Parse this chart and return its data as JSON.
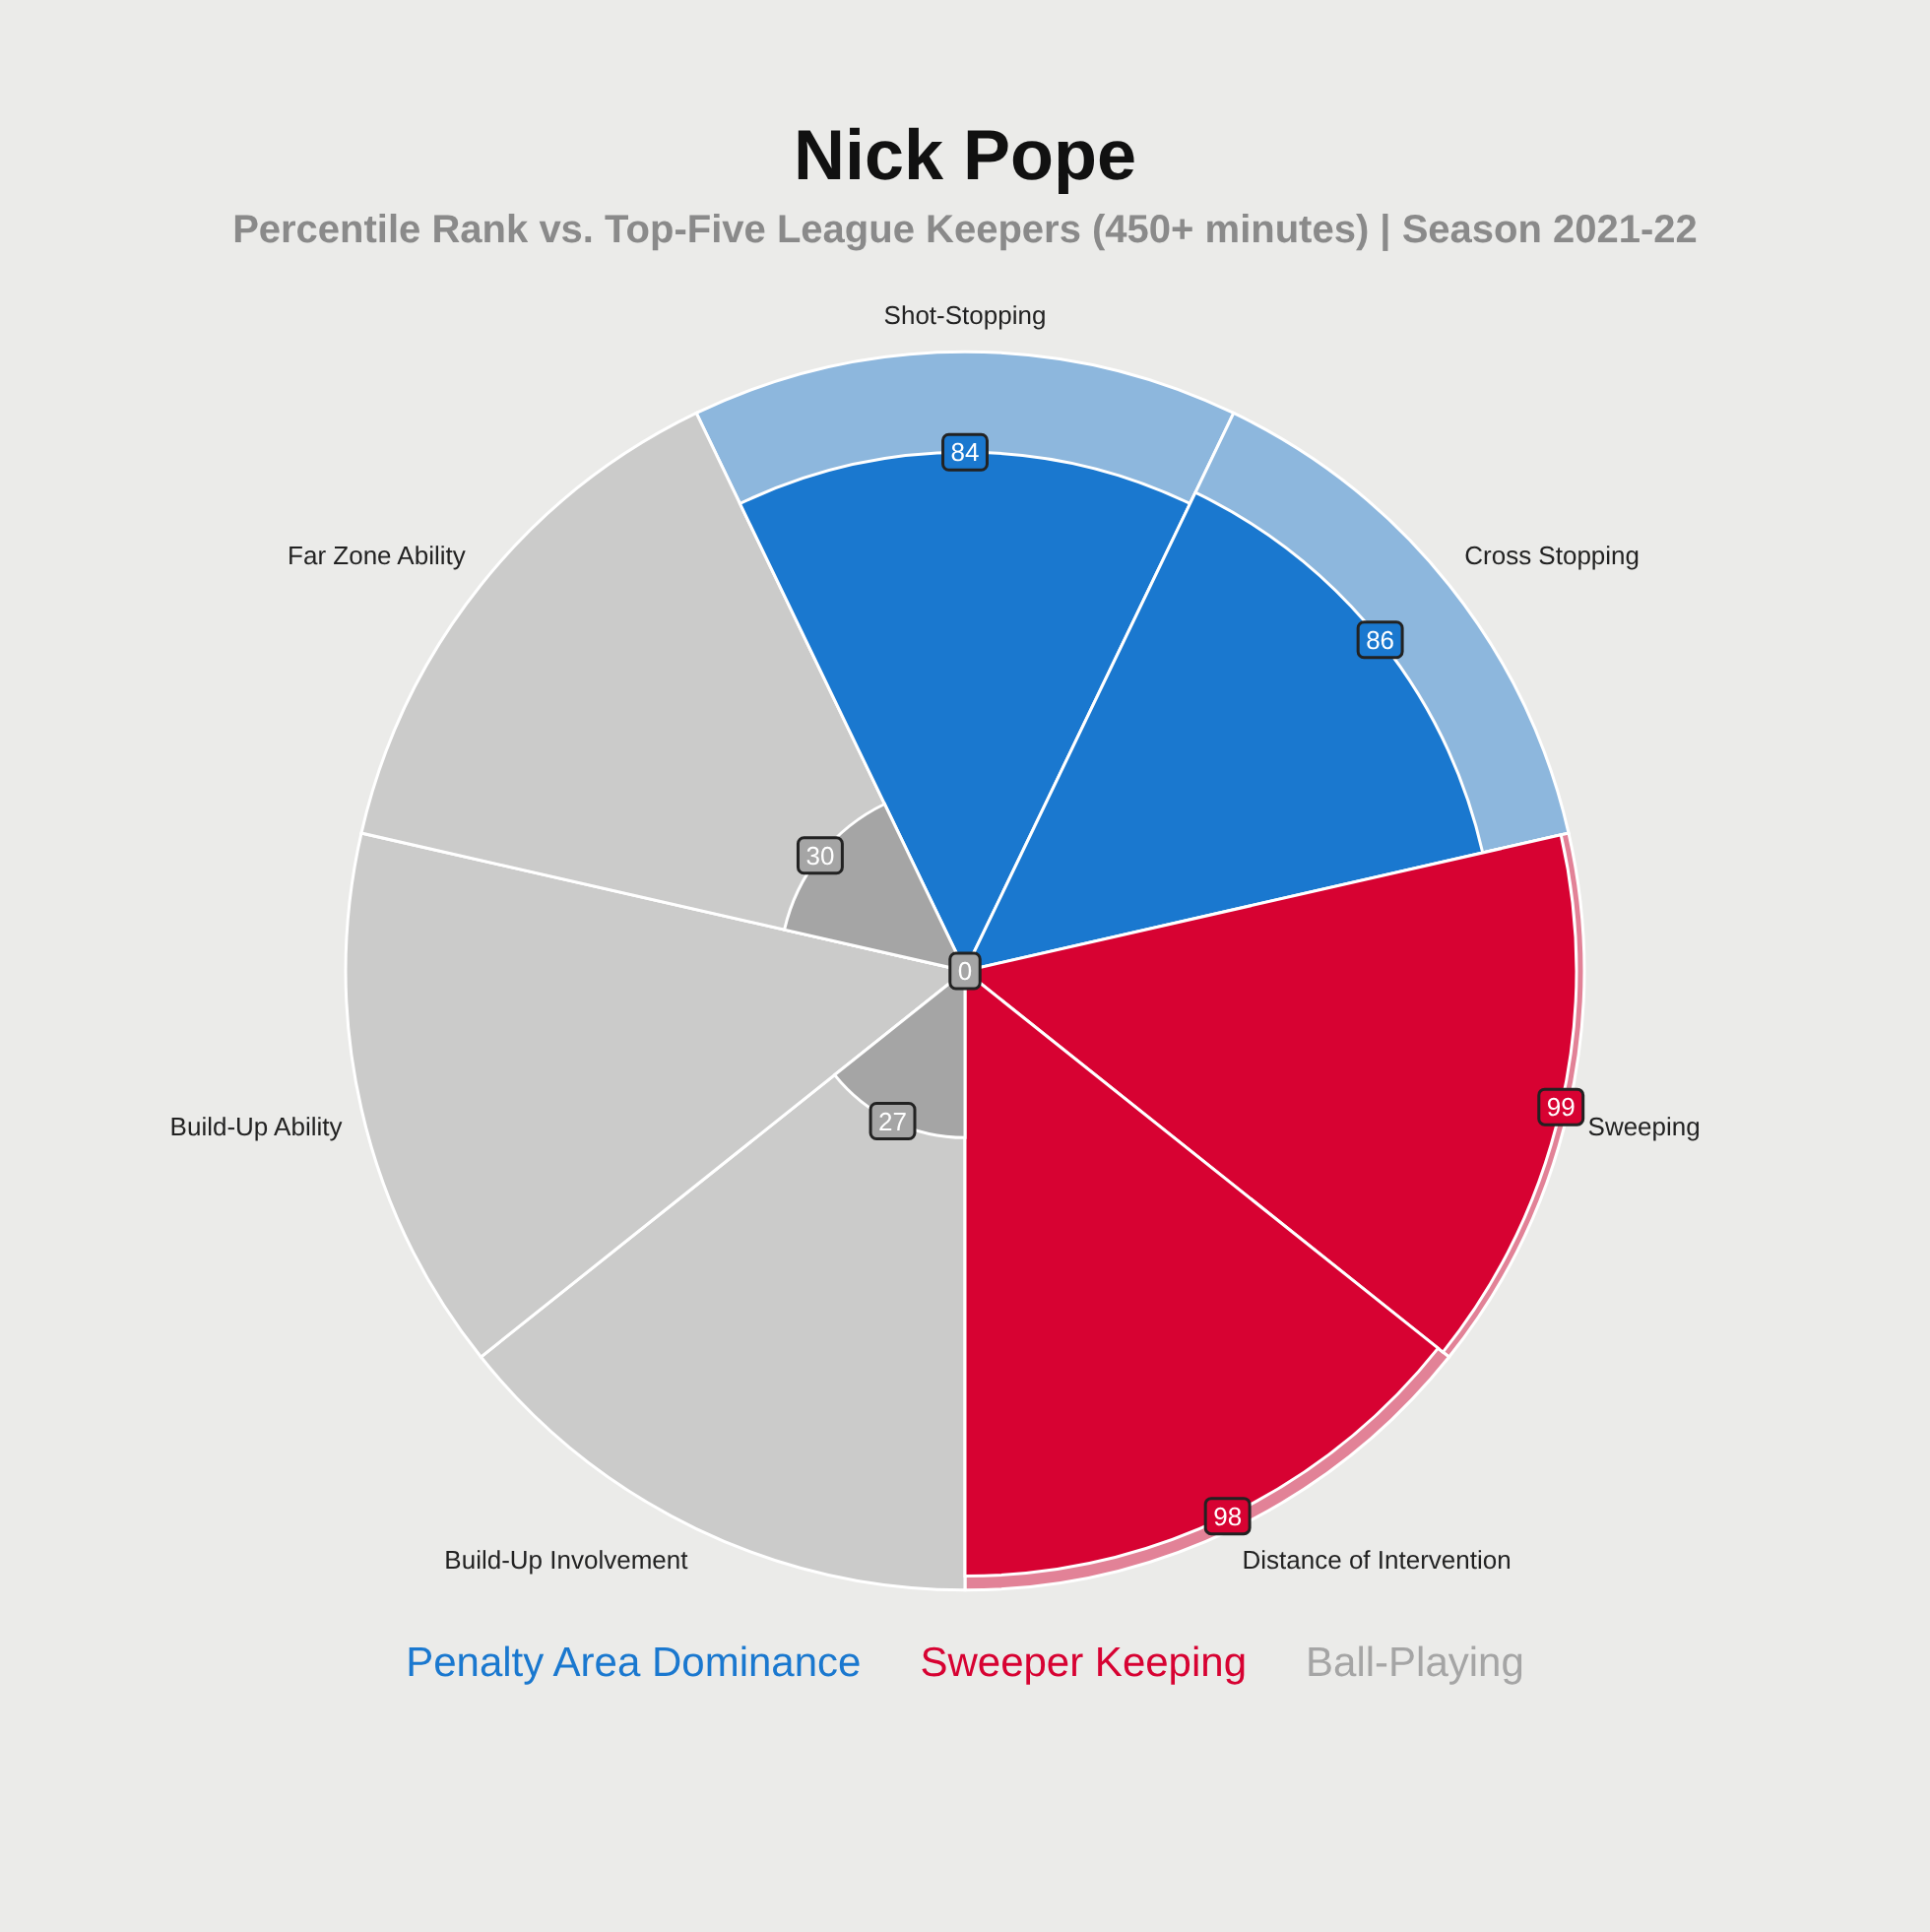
{
  "chart_data": {
    "type": "other",
    "title": "Nick Pope",
    "subtitle": "Percentile Rank vs. Top-Five League Keepers (450+ minutes)  |  Season 2021-22",
    "categories": [
      "Shot-Stopping",
      "Cross Stopping",
      "Sweeping",
      "Distance of Intervention",
      "Build-Up Involvement",
      "Build-Up Ability",
      "Far Zone Ability"
    ],
    "series": [
      {
        "name": "Penalty Area Dominance",
        "color": "#1a78cf",
        "values": [
          84,
          86,
          null,
          null,
          null,
          null,
          null
        ]
      },
      {
        "name": "Sweeper Keeping",
        "color": "#d70232",
        "values": [
          null,
          null,
          99,
          98,
          null,
          null,
          null
        ]
      },
      {
        "name": "Ball-Playing",
        "color": "#a5a5a5",
        "values": [
          null,
          null,
          null,
          null,
          27,
          0,
          30
        ]
      }
    ],
    "data_labels": true,
    "legend": "bottom"
  }
}
